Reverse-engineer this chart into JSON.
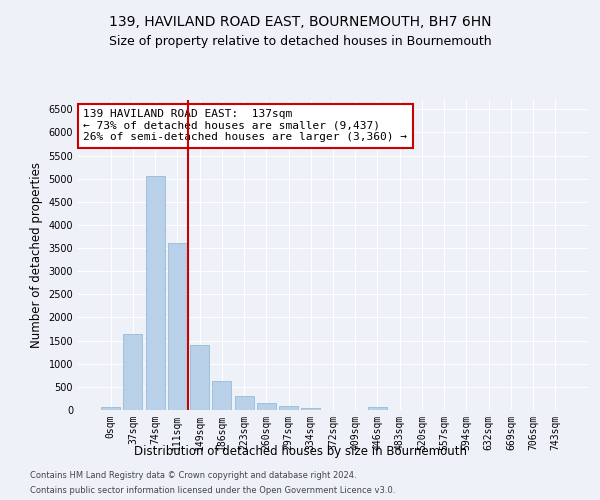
{
  "title": "139, HAVILAND ROAD EAST, BOURNEMOUTH, BH7 6HN",
  "subtitle": "Size of property relative to detached houses in Bournemouth",
  "xlabel": "Distribution of detached houses by size in Bournemouth",
  "ylabel": "Number of detached properties",
  "categories": [
    "0sqm",
    "37sqm",
    "74sqm",
    "111sqm",
    "149sqm",
    "186sqm",
    "223sqm",
    "260sqm",
    "297sqm",
    "334sqm",
    "372sqm",
    "409sqm",
    "446sqm",
    "483sqm",
    "520sqm",
    "557sqm",
    "594sqm",
    "632sqm",
    "669sqm",
    "706sqm",
    "743sqm"
  ],
  "values": [
    70,
    1640,
    5060,
    3600,
    1400,
    620,
    310,
    150,
    80,
    50,
    0,
    0,
    55,
    0,
    0,
    0,
    0,
    0,
    0,
    0,
    0
  ],
  "bar_color": "#b8d0e8",
  "bar_edge_color": "#8ab4d4",
  "vline_color": "#cc0000",
  "annotation_text": "139 HAVILAND ROAD EAST:  137sqm\n← 73% of detached houses are smaller (9,437)\n26% of semi-detached houses are larger (3,360) →",
  "annotation_box_color": "#ffffff",
  "annotation_box_edge": "#cc0000",
  "ylim": [
    0,
    6700
  ],
  "yticks": [
    0,
    500,
    1000,
    1500,
    2000,
    2500,
    3000,
    3500,
    4000,
    4500,
    5000,
    5500,
    6000,
    6500
  ],
  "footer1": "Contains HM Land Registry data © Crown copyright and database right 2024.",
  "footer2": "Contains public sector information licensed under the Open Government Licence v3.0.",
  "bg_color": "#eef2f8",
  "grid_color": "#ffffff",
  "title_fontsize": 10,
  "subtitle_fontsize": 9,
  "axis_label_fontsize": 8.5,
  "tick_fontsize": 7,
  "annotation_fontsize": 8,
  "footer_fontsize": 6
}
